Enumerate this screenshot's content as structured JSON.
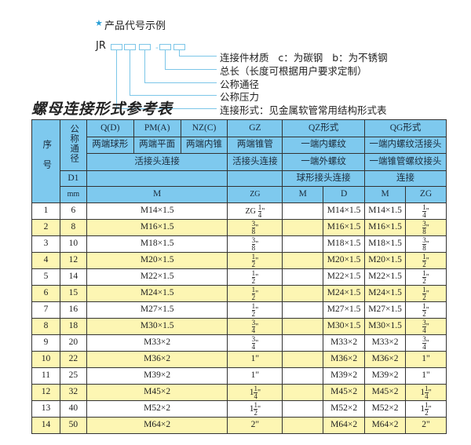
{
  "example": {
    "star_icon": "star-icon",
    "title": "产品代号示例",
    "prefix": "JR",
    "dash": "-",
    "labels": [
      "连接件材质   c：为碳钢   b：为不锈钢",
      "总长（长度可根据用户要求定制）",
      "公称通径",
      "公称压力",
      "连接形式：见金属软管常用结构形式表"
    ]
  },
  "table_title": "螺母连接形式参考表",
  "header": {
    "seq": "序号",
    "dn": "公称通径",
    "d1": "D1",
    "mm": "mm",
    "types": [
      "Q(D)",
      "PM(A)",
      "NZ(C)",
      "GZ",
      "QZ形式",
      "QG形式"
    ],
    "desc1": [
      "两端球形",
      "两端平面",
      "两端内锥",
      "两端锥管",
      "一端内螺纹",
      "一端内螺纹活接头"
    ],
    "desc2": [
      "活接头连接",
      "活接头连接",
      "一端外螺纹",
      "一端锥管螺纹接头"
    ],
    "desc3": [
      "球形接头连接",
      "连接"
    ],
    "units": [
      "M",
      "ZG",
      "M",
      "D",
      "M",
      "ZG"
    ]
  },
  "colors": {
    "header": "#7ec9ee",
    "row_alt": "#fdf6b3"
  },
  "rows": [
    {
      "no": "1",
      "dn": "6",
      "m": "M14×1.5",
      "zg": {
        "pre": "ZG",
        "w": "",
        "n": "1",
        "d": "4",
        "s": "\""
      },
      "qzm": "",
      "qzd": "M14×1.5",
      "qgm": "M14×1.5",
      "qgzg": {
        "w": "",
        "n": "1",
        "d": "4",
        "s": "\""
      }
    },
    {
      "no": "2",
      "dn": "8",
      "m": "M16×1.5",
      "zg": {
        "pre": "",
        "w": "",
        "n": "3",
        "d": "8",
        "s": "\""
      },
      "qzm": "",
      "qzd": "M16×1.5",
      "qgm": "M16×1.5",
      "qgzg": {
        "w": "",
        "n": "3",
        "d": "8",
        "s": "\""
      }
    },
    {
      "no": "3",
      "dn": "10",
      "m": "M18×1.5",
      "zg": {
        "pre": "",
        "w": "",
        "n": "3",
        "d": "8",
        "s": "\""
      },
      "qzm": "",
      "qzd": "M18×1.5",
      "qgm": "M18×1.5",
      "qgzg": {
        "w": "",
        "n": "3",
        "d": "8",
        "s": "\""
      }
    },
    {
      "no": "4",
      "dn": "12",
      "m": "M20×1.5",
      "zg": {
        "pre": "",
        "w": "",
        "n": "1",
        "d": "2",
        "s": "\""
      },
      "qzm": "",
      "qzd": "M20×1.5",
      "qgm": "M20×1.5",
      "qgzg": {
        "w": "",
        "n": "1",
        "d": "2",
        "s": "\""
      }
    },
    {
      "no": "5",
      "dn": "14",
      "m": "M22×1.5",
      "zg": {
        "pre": "",
        "w": "",
        "n": "1",
        "d": "2",
        "s": "\""
      },
      "qzm": "",
      "qzd": "M22×1.5",
      "qgm": "M22×1.5",
      "qgzg": {
        "w": "",
        "n": "1",
        "d": "2",
        "s": "\""
      }
    },
    {
      "no": "6",
      "dn": "15",
      "m": "M24×1.5",
      "zg": {
        "pre": "",
        "w": "",
        "n": "1",
        "d": "2",
        "s": "\""
      },
      "qzm": "",
      "qzd": "M24×1.5",
      "qgm": "M24×1.5",
      "qgzg": {
        "w": "",
        "n": "1",
        "d": "2",
        "s": "\""
      }
    },
    {
      "no": "7",
      "dn": "16",
      "m": "M27×1.5",
      "zg": {
        "pre": "",
        "w": "",
        "n": "1",
        "d": "2",
        "s": "\""
      },
      "qzm": "",
      "qzd": "M27×1.5",
      "qgm": "M27×1.5",
      "qgzg": {
        "w": "",
        "n": "1",
        "d": "2",
        "s": "\""
      }
    },
    {
      "no": "8",
      "dn": "18",
      "m": "M30×1.5",
      "zg": {
        "pre": "",
        "w": "",
        "n": "3",
        "d": "4",
        "s": "\""
      },
      "qzm": "",
      "qzd": "M30×1.5",
      "qgm": "M30×1.5",
      "qgzg": {
        "w": "",
        "n": "3",
        "d": "4",
        "s": "\""
      }
    },
    {
      "no": "9",
      "dn": "20",
      "m": "M33×2",
      "zg": {
        "pre": "",
        "w": "",
        "n": "3",
        "d": "4",
        "s": "\""
      },
      "qzm": "",
      "qzd": "M33×2",
      "qgm": "M33×2",
      "qgzg": {
        "w": "",
        "n": "3",
        "d": "4",
        "s": "\""
      }
    },
    {
      "no": "10",
      "dn": "22",
      "m": "M36×2",
      "zg": {
        "pre": "",
        "w": "1\"",
        "n": "",
        "d": "",
        "s": ""
      },
      "qzm": "",
      "qzd": "M36×2",
      "qgm": "M36×2",
      "qgzg": {
        "w": "1\"",
        "n": "",
        "d": "",
        "s": ""
      }
    },
    {
      "no": "11",
      "dn": "25",
      "m": "M39×2",
      "zg": {
        "pre": "",
        "w": "1\"",
        "n": "",
        "d": "",
        "s": ""
      },
      "qzm": "",
      "qzd": "M39×2",
      "qgm": "M39×2",
      "qgzg": {
        "w": "1\"",
        "n": "",
        "d": "",
        "s": ""
      }
    },
    {
      "no": "12",
      "dn": "32",
      "m": "M45×2",
      "zg": {
        "pre": "",
        "w": "1",
        "n": "1",
        "d": "4",
        "s": "\""
      },
      "qzm": "",
      "qzd": "M45×2",
      "qgm": "M45×2",
      "qgzg": {
        "w": "1",
        "n": "1",
        "d": "4",
        "s": "\""
      }
    },
    {
      "no": "13",
      "dn": "40",
      "m": "M52×2",
      "zg": {
        "pre": "",
        "w": "1",
        "n": "1",
        "d": "2",
        "s": "\""
      },
      "qzm": "",
      "qzd": "M52×2",
      "qgm": "M52×2",
      "qgzg": {
        "w": "1",
        "n": "1",
        "d": "2",
        "s": "\""
      }
    },
    {
      "no": "14",
      "dn": "50",
      "m": "M64×2",
      "zg": {
        "pre": "",
        "w": "2\"",
        "n": "",
        "d": "",
        "s": ""
      },
      "qzm": "",
      "qzd": "M64×2",
      "qgm": "M64×2",
      "qgzg": {
        "w": "2\"",
        "n": "",
        "d": "",
        "s": ""
      }
    }
  ]
}
